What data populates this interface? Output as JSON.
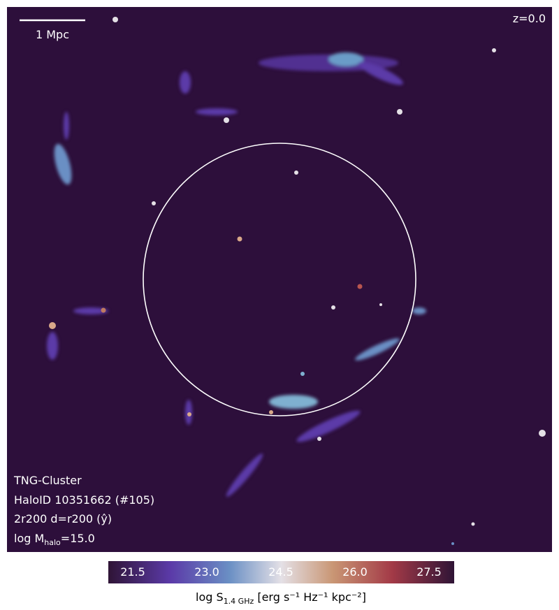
{
  "panel": {
    "scale_bar": "1 Mpc",
    "redshift": "z=0.0",
    "info": [
      "TNG-Cluster",
      "HaloID 10351662 (#105)",
      "2r200 d=r200 (ŷ)"
    ],
    "mass": {
      "main": "log M",
      "sub": "halo",
      "rest": "=15.0"
    }
  },
  "colorbar": {
    "ticks": [
      "21.5",
      "23.0",
      "24.5",
      "26.0",
      "27.5"
    ],
    "label": {
      "main": "log S",
      "sub": "1.4 GHz",
      "rest": " [erg s⁻¹ Hz⁻¹ kpc⁻²]"
    }
  }
}
